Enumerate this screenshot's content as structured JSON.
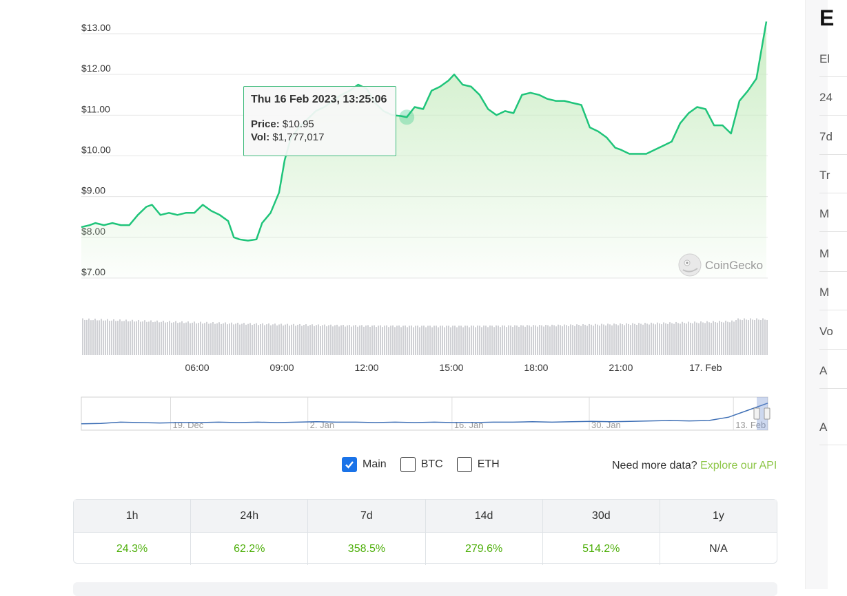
{
  "chart_data": {
    "type": "line",
    "y_ticks": [
      "$13.00",
      "$12.00",
      "$11.00",
      "$10.00",
      "$9.00",
      "$8.00",
      "$7.00"
    ],
    "ylim": [
      7,
      13
    ],
    "x_ticks": [
      "06:00",
      "09:00",
      "12:00",
      "15:00",
      "18:00",
      "21:00",
      "17. Feb"
    ],
    "x_tick_hours": [
      6,
      9,
      12,
      15,
      18,
      21,
      24
    ],
    "xlim_hours": [
      1.9,
      26.2
    ],
    "grid": true,
    "series": [
      {
        "values_hours": [
          1.9,
          2.2,
          2.4,
          2.7,
          3.0,
          3.3,
          3.6,
          3.9,
          4.2,
          4.4,
          4.7,
          5.0,
          5.3,
          5.6,
          5.9,
          6.2,
          6.5,
          6.8,
          7.1,
          7.3,
          7.5,
          7.8,
          8.1,
          8.3,
          8.6,
          8.9,
          9.1,
          9.3,
          9.6,
          9.9,
          10.2,
          10.5,
          10.8,
          11.1,
          11.4,
          11.7,
          12.0,
          12.3,
          12.6,
          12.9,
          13.2,
          13.42,
          13.7,
          14.0,
          14.3,
          14.6,
          14.9,
          15.1,
          15.4,
          15.7,
          16.0,
          16.3,
          16.6,
          16.9,
          17.2,
          17.5,
          17.8,
          18.1,
          18.4,
          18.7,
          19.0,
          19.3,
          19.6,
          19.9,
          20.2,
          20.5,
          20.8,
          21.0,
          21.3,
          21.6,
          21.9,
          22.2,
          22.5,
          22.8,
          23.1,
          23.4,
          23.7,
          24.0,
          24.3,
          24.6,
          24.9,
          25.2,
          25.5,
          25.8,
          26.0,
          26.15
        ],
        "values": [
          8.25,
          8.3,
          8.35,
          8.3,
          8.35,
          8.3,
          8.3,
          8.55,
          8.75,
          8.8,
          8.55,
          8.6,
          8.55,
          8.6,
          8.6,
          8.8,
          8.65,
          8.55,
          8.4,
          8.0,
          7.95,
          7.92,
          7.95,
          8.35,
          8.6,
          9.1,
          9.9,
          10.4,
          10.7,
          10.9,
          11.1,
          11.2,
          11.35,
          11.5,
          11.6,
          11.75,
          11.65,
          11.3,
          11.1,
          11.0,
          10.98,
          10.95,
          11.2,
          11.15,
          11.6,
          11.7,
          11.85,
          12.0,
          11.75,
          11.7,
          11.5,
          11.15,
          11.0,
          11.1,
          11.05,
          11.5,
          11.55,
          11.5,
          11.4,
          11.35,
          11.35,
          11.3,
          11.25,
          10.7,
          10.6,
          10.45,
          10.2,
          10.15,
          10.05,
          10.05,
          10.05,
          10.15,
          10.25,
          10.35,
          10.8,
          11.05,
          11.2,
          11.15,
          10.75,
          10.75,
          10.55,
          11.35,
          11.6,
          11.9,
          12.7,
          13.3
        ]
      }
    ],
    "highlight_point": {
      "hours": 13.42,
      "value": 10.95
    },
    "navigator_ticks": [
      "19. Dec",
      "2. Jan",
      "16. Jan",
      "30. Jan",
      "13. Feb"
    ],
    "navigator_tick_fractions": [
      0.13,
      0.33,
      0.54,
      0.74,
      0.95
    ],
    "navigator_values": [
      8.2,
      8.3,
      8.6,
      8.5,
      8.4,
      8.5,
      8.5,
      8.6,
      8.5,
      8.6,
      8.5,
      8.6,
      8.7,
      8.6,
      8.6,
      8.5,
      8.6,
      8.5,
      8.6,
      8.5,
      8.5,
      8.6,
      8.6,
      8.7,
      8.6,
      8.7,
      8.8,
      8.7,
      8.8,
      8.9,
      9.0,
      8.9,
      9.0,
      9.8,
      11.5,
      13.2
    ],
    "colors": {
      "line": "#1fc47a",
      "area_top": "#c7ecc0",
      "volume_bar": "#cfd0d4",
      "navigator_line": "#3e6fb5",
      "grid": "#e6e6e6"
    }
  },
  "tooltip": {
    "title": "Thu 16 Feb 2023, 13:25:06",
    "price_key": "Price:",
    "price_val": "$10.95",
    "vol_key": "Vol:",
    "vol_val": "$1,777,017"
  },
  "watermark": "CoinGecko",
  "controls": {
    "main": "Main",
    "btc": "BTC",
    "eth": "ETH",
    "main_checked": true,
    "api_text": "Need more data?",
    "api_link": "Explore our API"
  },
  "performance": {
    "headers": [
      "1h",
      "24h",
      "7d",
      "14d",
      "30d",
      "1y"
    ],
    "values": [
      "24.3%",
      "62.2%",
      "358.5%",
      "279.6%",
      "514.2%",
      "N/A"
    ]
  },
  "right_panel": {
    "title": "E",
    "items": [
      "El",
      "24",
      "7d",
      "Tr",
      "M",
      "M",
      "M",
      "Vo",
      "A",
      "A"
    ]
  }
}
